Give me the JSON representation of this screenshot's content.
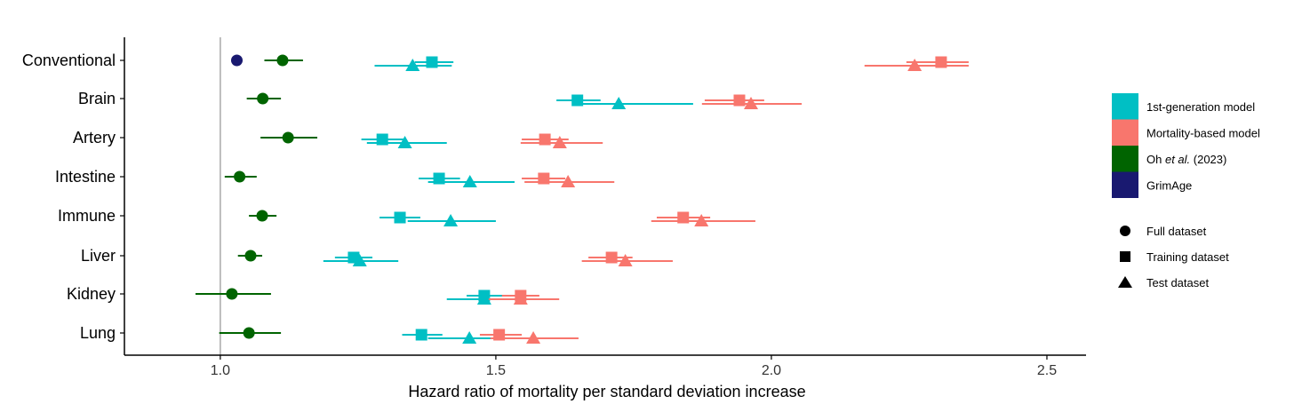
{
  "chart_data": {
    "type": "scatter",
    "subtype": "forest-plot",
    "title": "",
    "xlabel": "Hazard ratio of mortality per standard deviation increase",
    "ylabel": "",
    "xlim": [
      0.826,
      2.571
    ],
    "xticks": [
      1.0,
      1.5,
      2.0,
      2.5
    ],
    "xtick_labels": [
      "1.0",
      "1.5",
      "2.0",
      "2.5"
    ],
    "reference_line": 1.0,
    "grid": false,
    "legend_position": "right",
    "models": [
      {
        "key": "first",
        "label": "1st-generation model",
        "color": "#00BFC4"
      },
      {
        "key": "mort",
        "label": "Mortality-based model",
        "color": "#F8766D"
      },
      {
        "key": "oh",
        "label_pre": "Oh ",
        "label_it": "et al.",
        "label_post": " (2023)",
        "color": "#006400"
      },
      {
        "key": "grim",
        "label": "GrimAge",
        "color": "#191970"
      }
    ],
    "datasets": [
      {
        "key": "full",
        "label": "Full dataset",
        "shape": "circle"
      },
      {
        "key": "train",
        "label": "Training dataset",
        "shape": "square"
      },
      {
        "key": "test",
        "label": "Test dataset",
        "shape": "triangle"
      }
    ],
    "rows": [
      {
        "name": "Conventional",
        "points": [
          {
            "model": "grim",
            "dataset": "full",
            "hr": 1.03,
            "lo": 1.02,
            "hi": 1.04
          },
          {
            "model": "oh",
            "dataset": "full",
            "hr": 1.113,
            "lo": 1.08,
            "hi": 1.15
          },
          {
            "model": "first",
            "dataset": "train",
            "hr": 1.384,
            "lo": 1.353,
            "hi": 1.423
          },
          {
            "model": "first",
            "dataset": "test",
            "hr": 1.349,
            "lo": 1.28,
            "hi": 1.42
          },
          {
            "model": "mort",
            "dataset": "train",
            "hr": 2.308,
            "lo": 2.245,
            "hi": 2.358
          },
          {
            "model": "mort",
            "dataset": "test",
            "hr": 2.26,
            "lo": 2.169,
            "hi": 2.358
          }
        ]
      },
      {
        "name": "Brain",
        "points": [
          {
            "model": "oh",
            "dataset": "full",
            "hr": 1.077,
            "lo": 1.048,
            "hi": 1.11
          },
          {
            "model": "first",
            "dataset": "train",
            "hr": 1.648,
            "lo": 1.61,
            "hi": 1.69
          },
          {
            "model": "first",
            "dataset": "test",
            "hr": 1.723,
            "lo": 1.645,
            "hi": 1.858
          },
          {
            "model": "mort",
            "dataset": "train",
            "hr": 1.942,
            "lo": 1.879,
            "hi": 1.987
          },
          {
            "model": "mort",
            "dataset": "test",
            "hr": 1.963,
            "lo": 1.874,
            "hi": 2.055
          }
        ]
      },
      {
        "name": "Artery",
        "points": [
          {
            "model": "oh",
            "dataset": "full",
            "hr": 1.123,
            "lo": 1.073,
            "hi": 1.176
          },
          {
            "model": "first",
            "dataset": "train",
            "hr": 1.294,
            "lo": 1.256,
            "hi": 1.334
          },
          {
            "model": "first",
            "dataset": "test",
            "hr": 1.335,
            "lo": 1.266,
            "hi": 1.411
          },
          {
            "model": "mort",
            "dataset": "train",
            "hr": 1.589,
            "lo": 1.547,
            "hi": 1.632
          },
          {
            "model": "mort",
            "dataset": "test",
            "hr": 1.616,
            "lo": 1.545,
            "hi": 1.694
          }
        ]
      },
      {
        "name": "Intestine",
        "points": [
          {
            "model": "oh",
            "dataset": "full",
            "hr": 1.035,
            "lo": 1.008,
            "hi": 1.066
          },
          {
            "model": "first",
            "dataset": "train",
            "hr": 1.397,
            "lo": 1.36,
            "hi": 1.435
          },
          {
            "model": "first",
            "dataset": "test",
            "hr": 1.453,
            "lo": 1.377,
            "hi": 1.534
          },
          {
            "model": "mort",
            "dataset": "train",
            "hr": 1.587,
            "lo": 1.547,
            "hi": 1.626
          },
          {
            "model": "mort",
            "dataset": "test",
            "hr": 1.631,
            "lo": 1.552,
            "hi": 1.715
          }
        ]
      },
      {
        "name": "Immune",
        "points": [
          {
            "model": "oh",
            "dataset": "full",
            "hr": 1.076,
            "lo": 1.052,
            "hi": 1.102
          },
          {
            "model": "first",
            "dataset": "train",
            "hr": 1.326,
            "lo": 1.289,
            "hi": 1.363
          },
          {
            "model": "first",
            "dataset": "test",
            "hr": 1.418,
            "lo": 1.34,
            "hi": 1.5
          },
          {
            "model": "mort",
            "dataset": "train",
            "hr": 1.84,
            "lo": 1.792,
            "hi": 1.889
          },
          {
            "model": "mort",
            "dataset": "test",
            "hr": 1.873,
            "lo": 1.782,
            "hi": 1.971
          }
        ]
      },
      {
        "name": "Liver",
        "points": [
          {
            "model": "oh",
            "dataset": "full",
            "hr": 1.055,
            "lo": 1.032,
            "hi": 1.076
          },
          {
            "model": "first",
            "dataset": "train",
            "hr": 1.242,
            "lo": 1.208,
            "hi": 1.276
          },
          {
            "model": "first",
            "dataset": "test",
            "hr": 1.253,
            "lo": 1.187,
            "hi": 1.323
          },
          {
            "model": "mort",
            "dataset": "train",
            "hr": 1.71,
            "lo": 1.668,
            "hi": 1.748
          },
          {
            "model": "mort",
            "dataset": "test",
            "hr": 1.735,
            "lo": 1.656,
            "hi": 1.821
          }
        ]
      },
      {
        "name": "Kidney",
        "points": [
          {
            "model": "oh",
            "dataset": "full",
            "hr": 1.021,
            "lo": 0.955,
            "hi": 1.092
          },
          {
            "model": "first",
            "dataset": "train",
            "hr": 1.479,
            "lo": 1.447,
            "hi": 1.515
          },
          {
            "model": "first",
            "dataset": "test",
            "hr": 1.479,
            "lo": 1.411,
            "hi": 1.548
          },
          {
            "model": "mort",
            "dataset": "train",
            "hr": 1.545,
            "lo": 1.511,
            "hi": 1.579
          },
          {
            "model": "mort",
            "dataset": "test",
            "hr": 1.545,
            "lo": 1.487,
            "hi": 1.615
          }
        ]
      },
      {
        "name": "Lung",
        "points": [
          {
            "model": "oh",
            "dataset": "full",
            "hr": 1.052,
            "lo": 0.998,
            "hi": 1.11
          },
          {
            "model": "first",
            "dataset": "train",
            "hr": 1.365,
            "lo": 1.33,
            "hi": 1.403
          },
          {
            "model": "first",
            "dataset": "test",
            "hr": 1.452,
            "lo": 1.377,
            "hi": 1.534
          },
          {
            "model": "mort",
            "dataset": "train",
            "hr": 1.506,
            "lo": 1.471,
            "hi": 1.547
          },
          {
            "model": "mort",
            "dataset": "test",
            "hr": 1.568,
            "lo": 1.49,
            "hi": 1.65
          }
        ]
      }
    ]
  }
}
